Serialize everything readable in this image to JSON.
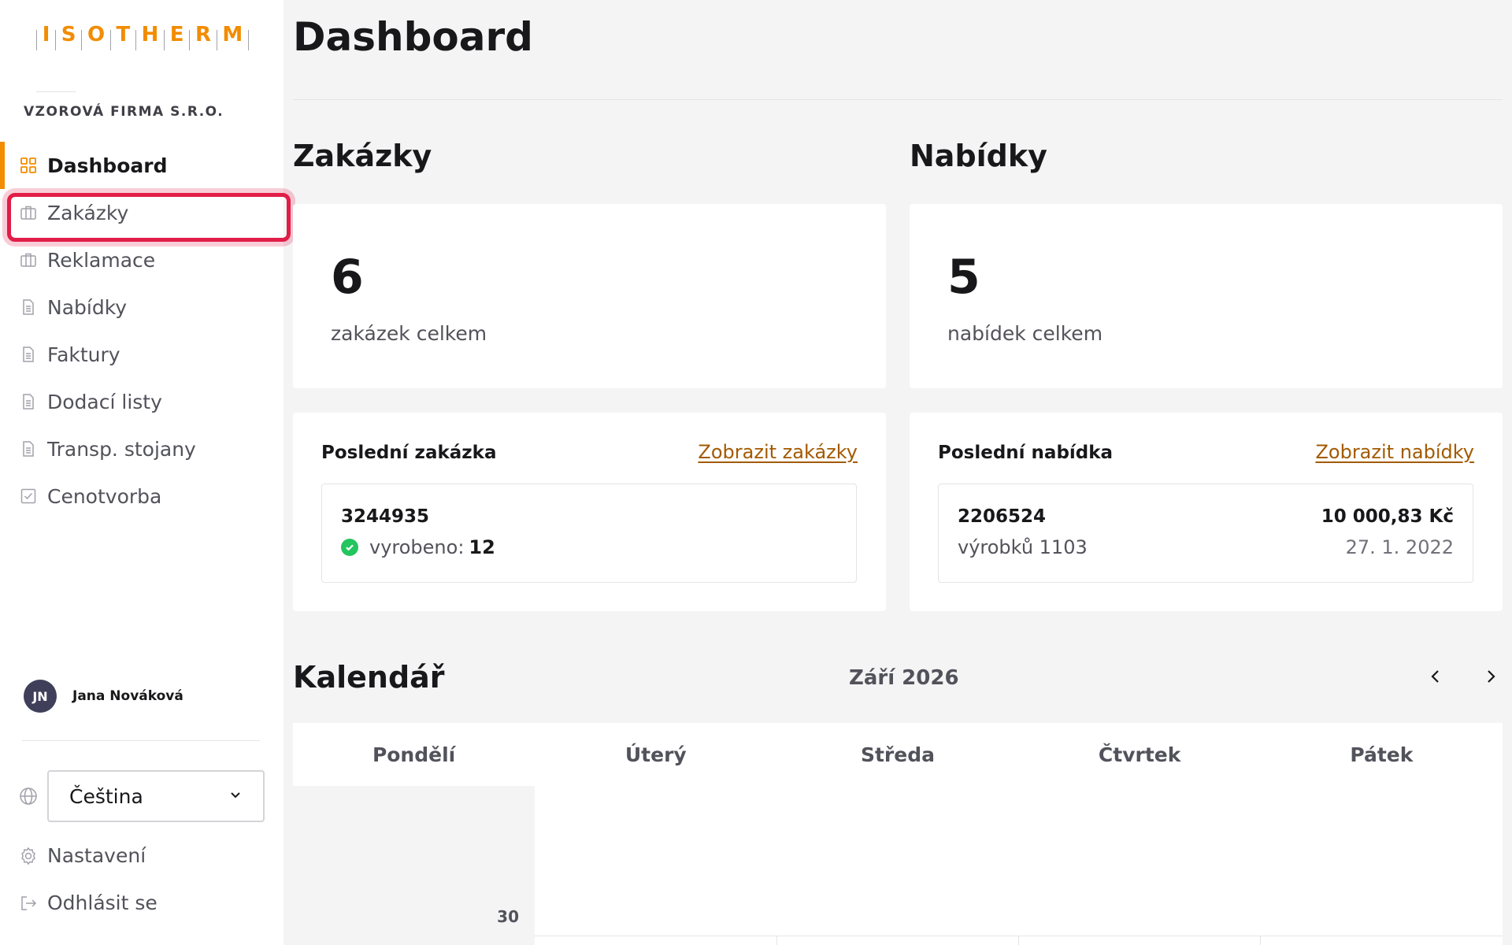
{
  "logo": {
    "letters": [
      "I",
      "S",
      "O",
      "T",
      "H",
      "E",
      "R",
      "M"
    ]
  },
  "sidebar": {
    "company": "VZOROVÁ FIRMA S.R.O.",
    "items": [
      {
        "label": "Dashboard",
        "icon": "grid-icon"
      },
      {
        "label": "Zakázky",
        "icon": "briefcase-icon"
      },
      {
        "label": "Reklamace",
        "icon": "briefcase-icon"
      },
      {
        "label": "Nabídky",
        "icon": "document-icon"
      },
      {
        "label": "Faktury",
        "icon": "document-icon"
      },
      {
        "label": "Dodací listy",
        "icon": "document-icon"
      },
      {
        "label": "Transp. stojany",
        "icon": "document-icon"
      },
      {
        "label": "Cenotvorba",
        "icon": "checkbox-icon"
      }
    ],
    "active_index": 0,
    "highlight_index": 1,
    "user": {
      "initials": "JN",
      "name": "Jana Nováková"
    },
    "language": {
      "selected": "Čeština"
    },
    "settings_label": "Nastavení",
    "logout_label": "Odhlásit se"
  },
  "main": {
    "title": "Dashboard",
    "orders": {
      "title": "Zakázky",
      "count": "6",
      "count_caption": "zakázek celkem",
      "last_title": "Poslední zakázka",
      "link": "Zobrazit zakázky",
      "last": {
        "id": "3244935",
        "status_label": "vyrobeno:",
        "status_value": "12"
      }
    },
    "offers": {
      "title": "Nabídky",
      "count": "5",
      "count_caption": "nabídek celkem",
      "last_title": "Poslední nabídka",
      "link": "Zobrazit nabídky",
      "last": {
        "id": "2206524",
        "products": "výrobků 1103",
        "price": "10 000,83 Kč",
        "date": "27. 1. 2022"
      }
    },
    "calendar": {
      "title": "Kalendář",
      "month": "Září 2026",
      "days": [
        "Pondělí",
        "Úterý",
        "Středa",
        "Čtvrtek",
        "Pátek"
      ],
      "first_cell_day": "30"
    }
  },
  "colors": {
    "accent": "#f28c00",
    "link": "#a35a00",
    "highlight": "#e11d48",
    "success": "#22c55e"
  }
}
